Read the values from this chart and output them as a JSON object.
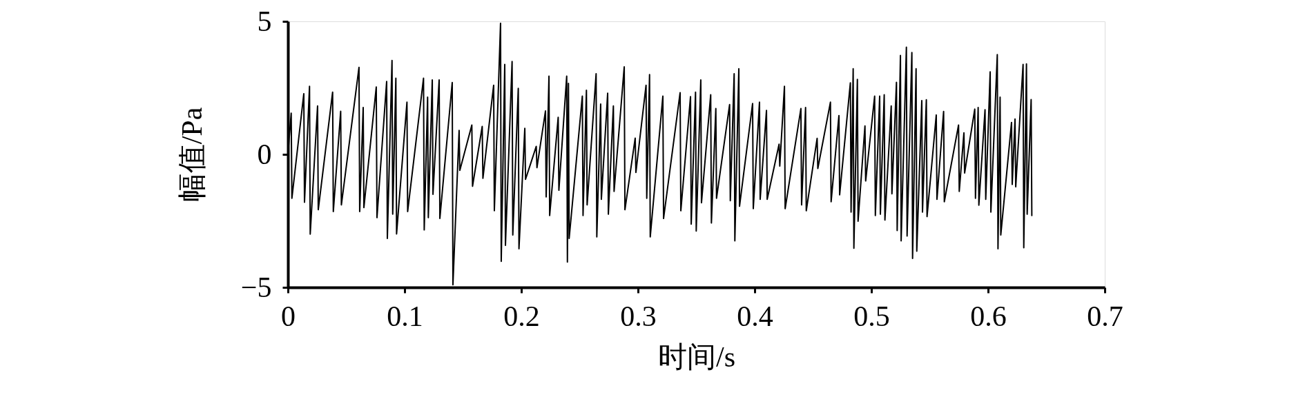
{
  "chart_data": {
    "type": "line",
    "xlabel": "时间/s",
    "ylabel": "幅值/Pa",
    "xlim": [
      0,
      0.7
    ],
    "xticks": [
      0,
      0.1,
      0.2,
      0.3,
      0.4,
      0.5,
      0.6,
      0.7
    ],
    "ylim": [
      -5,
      5
    ],
    "yticks": [
      -5,
      0,
      5
    ],
    "x": [
      0,
      0.0028,
      0.0034,
      0.0136,
      0.0142,
      0.0185,
      0.0191,
      0.0254,
      0.026,
      0.0383,
      0.0389,
      0.0452,
      0.0458,
      0.0609,
      0.0615,
      0.0645,
      0.0651,
      0.0757,
      0.0763,
      0.0846,
      0.0852,
      0.0892,
      0.0898,
      0.0925,
      0.0931,
      0.102,
      0.1026,
      0.1162,
      0.1168,
      0.1197,
      0.1203,
      0.1237,
      0.1243,
      0.1296,
      0.1302,
      0.1408,
      0.1414,
      0.1467,
      0.1473,
      0.1576,
      0.1582,
      0.1665,
      0.1671,
      0.1763,
      0.1769,
      0.1822,
      0.1828,
      0.1858,
      0.1864,
      0.1921,
      0.1927,
      0.1974,
      0.198,
      0.203,
      0.2036,
      0.2128,
      0.2134,
      0.2207,
      0.2213,
      0.2237,
      0.2243,
      0.2316,
      0.2322,
      0.2389,
      0.2395,
      0.2404,
      0.241,
      0.2523,
      0.2529,
      0.2558,
      0.2564,
      0.2641,
      0.2647,
      0.268,
      0.2686,
      0.274,
      0.2746,
      0.2789,
      0.2795,
      0.2882,
      0.2888,
      0.2976,
      0.2982,
      0.3069,
      0.3075,
      0.3099,
      0.3105,
      0.3213,
      0.3219,
      0.3361,
      0.3367,
      0.345,
      0.3456,
      0.3493,
      0.3499,
      0.3538,
      0.3544,
      0.3623,
      0.3629,
      0.3667,
      0.3673,
      0.3785,
      0.3791,
      0.3824,
      0.383,
      0.3864,
      0.387,
      0.3982,
      0.3988,
      0.4041,
      0.4047,
      0.4101,
      0.4107,
      0.4209,
      0.4215,
      0.4255,
      0.4261,
      0.4396,
      0.4402,
      0.4436,
      0.4442,
      0.4535,
      0.4541,
      0.4649,
      0.4655,
      0.4722,
      0.4728,
      0.482,
      0.4826,
      0.4844,
      0.485,
      0.488,
      0.4886,
      0.4945,
      0.4951,
      0.5028,
      0.5034,
      0.5071,
      0.5077,
      0.511,
      0.5116,
      0.517,
      0.5176,
      0.5215,
      0.5221,
      0.5249,
      0.5255,
      0.53,
      0.5306,
      0.5347,
      0.5353,
      0.5383,
      0.5389,
      0.5432,
      0.5438,
      0.5471,
      0.5477,
      0.5556,
      0.5562,
      0.5619,
      0.5625,
      0.5747,
      0.5753,
      0.5793,
      0.5799,
      0.5886,
      0.5892,
      0.5915,
      0.5921,
      0.5974,
      0.598,
      0.6018,
      0.6024,
      0.6079,
      0.6085,
      0.6103,
      0.6109,
      0.6201,
      0.6207,
      0.6231,
      0.6237,
      0.63,
      0.6306,
      0.6329,
      0.6335,
      0.6369,
      0.6375
    ],
    "series": [
      {
        "color": "#000000",
        "values": [
          0,
          1.55,
          -1.65,
          2.28,
          -1.8,
          2.56,
          -3.0,
          1.82,
          -2.08,
          2.34,
          -2.15,
          1.62,
          -1.9,
          3.27,
          -2.15,
          1.76,
          -2.0,
          2.53,
          -2.38,
          2.74,
          -3.16,
          3.53,
          -2.25,
          2.86,
          -2.99,
          1.96,
          -2.15,
          2.86,
          -2.84,
          2.15,
          -2.38,
          2.8,
          -1.5,
          2.8,
          -2.41,
          2.7,
          -4.9,
          0.9,
          -0.6,
          1.1,
          -1.2,
          1.05,
          -0.9,
          2.6,
          -2.12,
          4.93,
          -4.02,
          3.38,
          -3.42,
          3.49,
          -3.03,
          2.48,
          -3.55,
          0.98,
          -0.94,
          0.3,
          -0.5,
          1.63,
          -1.6,
          2.94,
          -2.3,
          1.39,
          -1.35,
          2.94,
          -4.05,
          2.67,
          -3.16,
          2.19,
          -2.3,
          2.41,
          -1.9,
          3.03,
          -3.1,
          1.89,
          -1.69,
          2.3,
          -2.25,
          1.82,
          -1.39,
          3.29,
          -2.08,
          0.61,
          -0.68,
          2.6,
          -1.65,
          3.0,
          -3.1,
          2.19,
          -2.41,
          2.32,
          -2.12,
          2.17,
          -2.62,
          2.34,
          -2.88,
          2.8,
          -1.82,
          2.24,
          -2.58,
          1.72,
          -1.65,
          1.87,
          -1.74,
          3.03,
          -3.25,
          3.22,
          -1.95,
          1.91,
          -2.04,
          1.96,
          -1.69,
          1.65,
          -1.69,
          0.38,
          -0.44,
          2.56,
          -2.04,
          1.72,
          -1.9,
          1.76,
          -2.12,
          0.6,
          -0.53,
          1.96,
          -1.78,
          1.46,
          -1.52,
          2.69,
          -2.17,
          3.22,
          -3.53,
          2.82,
          -2.51,
          1.07,
          -1.0,
          2.19,
          -2.3,
          2.19,
          -2.25,
          2.24,
          -2.47,
          1.82,
          -1.48,
          2.71,
          -2.86,
          3.72,
          -3.25,
          4.03,
          -3.07,
          3.83,
          -3.91,
          3.22,
          -3.64,
          2.02,
          -2.17,
          2.05,
          -2.34,
          1.48,
          -1.69,
          1.61,
          -1.78,
          1.1,
          -1.39,
          0.81,
          -0.7,
          1.7,
          -1.65,
          1.76,
          -1.91,
          1.68,
          -1.69,
          3.1,
          -2.17,
          3.75,
          -3.55,
          2.15,
          -3.03,
          1.2,
          -1.13,
          1.33,
          -1.22,
          3.38,
          -3.51,
          3.4,
          -2.25,
          2.06,
          -2.3
        ]
      }
    ]
  }
}
